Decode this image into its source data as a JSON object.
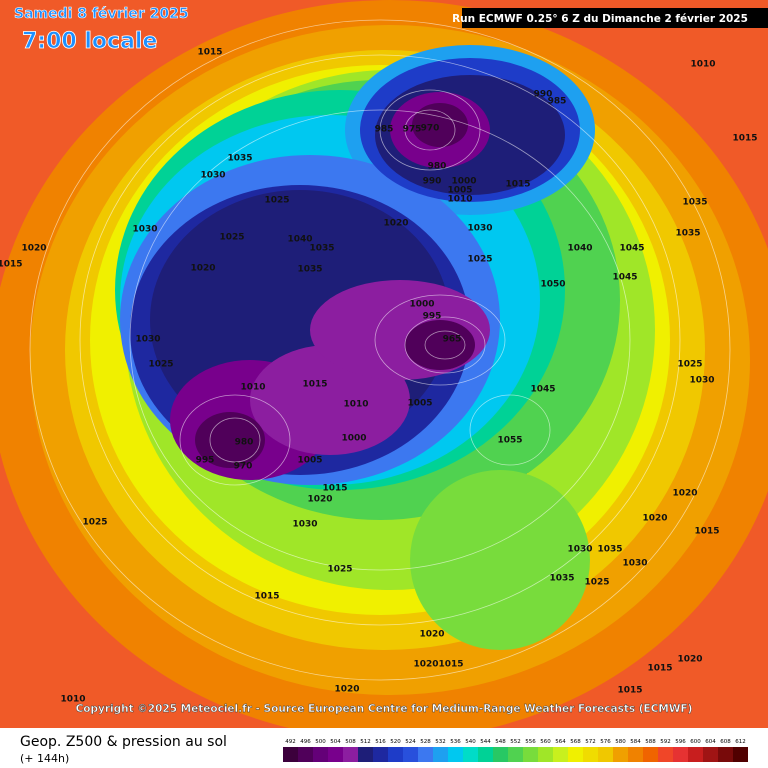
{
  "header": {
    "date": "Samedi 8 février 2025",
    "time": "7:00 locale",
    "run": "Run ECMWF 0.25° 6 Z du Dimanche 2 février 2025"
  },
  "map": {
    "pressure_labels": [
      1015,
      1010,
      990,
      985,
      985,
      975,
      970,
      1015,
      1035,
      980,
      990,
      1000,
      1005,
      1010,
      1015,
      1030,
      1025,
      1035,
      1020,
      1030,
      1040,
      1035,
      1025,
      1030,
      1020,
      1015,
      1040,
      1045,
      1025,
      1020,
      1035,
      1050,
      1000,
      995,
      965,
      1030,
      1025,
      1010,
      1015,
      1005,
      1010,
      1045,
      1055,
      1000,
      980,
      995,
      970,
      1005,
      1015,
      1020,
      1030,
      1025,
      1025,
      1030,
      1035,
      1030,
      1035,
      1025,
      1015,
      1020,
      1020,
      1015,
      1020,
      1010,
      1020,
      1015,
      1015,
      1015,
      1020,
      1020,
      1025,
      1030,
      1045,
      1035
    ]
  },
  "copyright": "Copyright ©2025 Meteociel.fr - Source European Centre for Medium-Range Weather Forecasts (ECMWF)",
  "legend": {
    "title": "Geop. Z500 & pression au sol",
    "lead": "(+ 144h)",
    "ticks": [
      492,
      496,
      500,
      504,
      508,
      512,
      516,
      520,
      524,
      528,
      532,
      536,
      540,
      544,
      548,
      552,
      556,
      560,
      564,
      568,
      572,
      576,
      580,
      584,
      588,
      592,
      596,
      600,
      604,
      608,
      612
    ],
    "colors": [
      "#3c003c",
      "#50005a",
      "#640078",
      "#78008c",
      "#8c1ea0",
      "#1e1e78",
      "#1e28a0",
      "#1e3cc8",
      "#2850dc",
      "#3c78f0",
      "#1ea0f0",
      "#00c8f0",
      "#00dcc8",
      "#00d296",
      "#28c864",
      "#50d250",
      "#78dc3c",
      "#a0e628",
      "#c8f01e",
      "#f0f000",
      "#f0dc00",
      "#f0c800",
      "#f0a000",
      "#f08200",
      "#f06400",
      "#f04628",
      "#e63232",
      "#c81e1e",
      "#a01414",
      "#780a0a",
      "#500000"
    ]
  }
}
